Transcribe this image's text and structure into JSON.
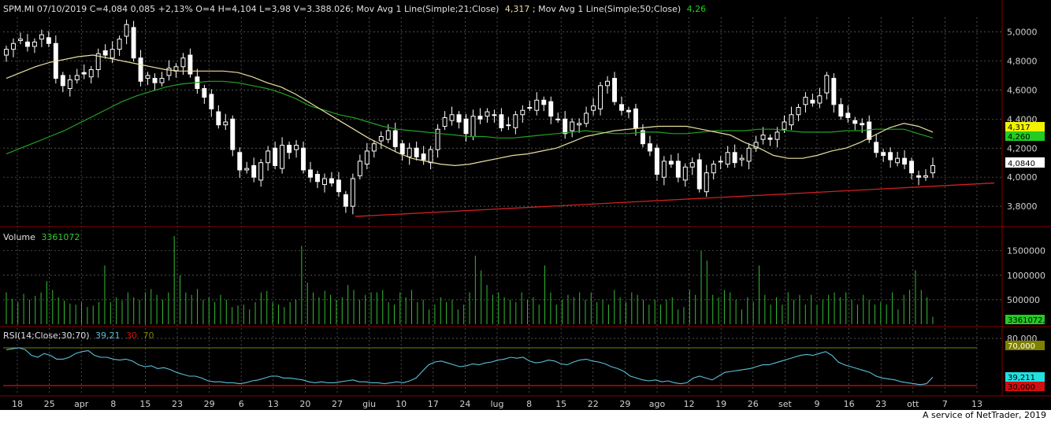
{
  "colors": {
    "background": "#000000",
    "grid": "#6a6a6a",
    "axis_text": "#d0d0d0",
    "up_candle": "#ffffff",
    "down_candle": "#ffffff",
    "ma21": "#e8e0a0",
    "ma50": "#22a022",
    "trendline": "#d02020",
    "volume": "#33bb33",
    "rsi": "#5ac0d8",
    "rsi_upper": "#808000",
    "rsi_lower": "#d01010",
    "price_tag": "#ffffff",
    "ma21_tag": "#f2f200",
    "ma50_tag": "#22cc22",
    "rsi_tag": "#22e0e0",
    "volume_tag": "#22cc22"
  },
  "header": {
    "text": "SPM.MI 07/10/2019 C=4,084 0,085 +2,13% O=4 H=4,104 L=3,98 V=3.388.026; Mov Avg 1 Line(Simple;21;Close)",
    "ma21_value": "4,317",
    "mid_text": "; Mov Avg 1 Line(Simple;50;Close)",
    "ma50_value": "4,26"
  },
  "volume_panel": {
    "label": "Volume",
    "value": "3361072"
  },
  "rsi_panel": {
    "label": "RSI(14;Close;30;70)",
    "value": "39,21",
    "level_low": "30",
    "level_high": "70"
  },
  "tags": {
    "ma21": "4,317",
    "ma50": "4,260",
    "price": "4,0840",
    "volume": "3361072,",
    "rsi_upper": "70,000",
    "rsi_value": "39,211",
    "rsi_lower": "30,000"
  },
  "footer": "A service of NetTrader, 2019",
  "chart_data": [
    {
      "type": "candlestick",
      "title": "SPM.MI",
      "y_ticks": [
        "5,0000",
        "4,8000",
        "4,6000",
        "4,4000",
        "4,2000",
        "4,0000",
        "3,8000"
      ],
      "ylim": [
        3.66,
        5.1
      ],
      "x_tick_labels": [
        "18",
        "25",
        "apr",
        "8",
        "15",
        "23",
        "29",
        "6",
        "13",
        "20",
        "27",
        "giu",
        "10",
        "17",
        "24",
        "lug",
        "8",
        "15",
        "22",
        "29",
        "ago",
        "12",
        "19",
        "26",
        "set",
        "9",
        "16",
        "23",
        "ott",
        "7",
        "13"
      ],
      "series": [
        {
          "name": "close",
          "values": [
            4.88,
            4.92,
            4.95,
            4.9,
            4.93,
            4.98,
            4.92,
            4.68,
            4.63,
            4.67,
            4.7,
            4.71,
            4.74,
            4.85,
            4.84,
            4.88,
            4.95,
            5.05,
            4.82,
            4.66,
            4.7,
            4.65,
            4.68,
            4.75,
            4.76,
            4.82,
            4.71,
            4.61,
            4.55,
            4.47,
            4.36,
            4.38,
            4.19,
            4.05,
            4.06,
            4.0,
            4.1,
            4.18,
            4.08,
            4.22,
            4.17,
            4.22,
            4.05,
            4.0,
            3.97,
            3.99,
            3.96,
            3.9,
            3.8,
            3.99,
            4.11,
            4.18,
            4.23,
            4.28,
            4.32,
            4.21,
            4.16,
            4.2,
            4.14,
            4.12,
            4.19,
            4.33,
            4.41,
            4.43,
            4.38,
            4.3,
            4.42,
            4.4,
            4.45,
            4.43,
            4.34,
            4.36,
            4.43,
            4.46,
            4.48,
            4.53,
            4.5,
            4.42,
            4.4,
            4.3,
            4.38,
            4.37,
            4.44,
            4.49,
            4.63,
            4.66,
            4.52,
            4.46,
            4.45,
            4.34,
            4.23,
            4.18,
            4.02,
            4.11,
            4.09,
            4.0,
            4.07,
            4.1,
            3.92,
            4.03,
            4.09,
            4.11,
            4.17,
            4.1,
            4.13,
            4.2,
            4.24,
            4.29,
            4.26,
            4.31,
            4.38,
            4.43,
            4.48,
            4.55,
            4.51,
            4.56,
            4.7,
            4.5,
            4.42,
            4.41,
            4.37,
            4.36,
            4.26,
            4.17,
            4.15,
            4.12,
            4.13,
            4.09,
            4.03,
            4.0,
            4.01,
            4.08
          ]
        },
        {
          "name": "Mov Avg 21",
          "values": [
            4.68,
            4.72,
            4.76,
            4.79,
            4.81,
            4.83,
            4.84,
            4.82,
            4.8,
            4.78,
            4.76,
            4.74,
            4.73,
            4.73,
            4.73,
            4.73,
            4.72,
            4.69,
            4.65,
            4.62,
            4.57,
            4.51,
            4.45,
            4.39,
            4.33,
            4.27,
            4.22,
            4.17,
            4.13,
            4.11,
            4.09,
            4.08,
            4.09,
            4.11,
            4.13,
            4.15,
            4.16,
            4.18,
            4.2,
            4.24,
            4.28,
            4.3,
            4.32,
            4.33,
            4.34,
            4.35,
            4.35,
            4.35,
            4.33,
            4.31,
            4.29,
            4.24,
            4.2,
            4.15,
            4.13,
            4.13,
            4.15,
            4.18,
            4.2,
            4.24,
            4.29,
            4.34,
            4.37,
            4.35,
            4.31
          ]
        },
        {
          "name": "Mov Avg 50",
          "values": [
            4.16,
            4.2,
            4.24,
            4.28,
            4.32,
            4.37,
            4.42,
            4.47,
            4.52,
            4.56,
            4.59,
            4.62,
            4.64,
            4.65,
            4.66,
            4.66,
            4.65,
            4.63,
            4.61,
            4.58,
            4.54,
            4.49,
            4.46,
            4.43,
            4.41,
            4.38,
            4.35,
            4.33,
            4.32,
            4.31,
            4.3,
            4.29,
            4.28,
            4.28,
            4.27,
            4.27,
            4.28,
            4.29,
            4.3,
            4.31,
            4.32,
            4.31,
            4.3,
            4.3,
            4.31,
            4.31,
            4.3,
            4.3,
            4.31,
            4.32,
            4.32,
            4.32,
            4.33,
            4.33,
            4.32,
            4.31,
            4.31,
            4.31,
            4.32,
            4.32,
            4.33,
            4.33,
            4.33,
            4.3,
            4.27
          ]
        }
      ],
      "trendline": [
        3.73,
        3.96
      ],
      "last_values": {
        "close": 4.084,
        "ma21": 4.317,
        "ma50": 4.26
      }
    },
    {
      "type": "bar",
      "title": "Volume",
      "y_ticks": [
        "1500000",
        "1000000",
        "500000"
      ],
      "ylim": [
        0,
        1800000
      ],
      "values": [
        650000,
        520000,
        450000,
        620000,
        500000,
        580000,
        650000,
        880000,
        700000,
        550000,
        480000,
        420000,
        400000,
        450000,
        350000,
        380000,
        450000,
        1200000,
        450000,
        550000,
        480000,
        650000,
        550000,
        500000,
        650000,
        720000,
        600000,
        500000,
        650000,
        1800000,
        1000000,
        650000,
        600000,
        720000,
        500000,
        550000,
        450000,
        600000,
        500000,
        350000,
        380000,
        400000,
        300000,
        450000,
        650000,
        680000,
        450000,
        400000,
        350000,
        450000,
        500000,
        1600000,
        850000,
        650000,
        550000,
        680000,
        600000,
        500000,
        550000,
        800000,
        700000,
        500000,
        600000,
        650000,
        650000,
        700000,
        450000,
        400000,
        650000,
        550000,
        700000,
        450000,
        500000,
        300000,
        400000,
        550000,
        450000,
        500000,
        300000,
        400000,
        650000,
        1400000,
        1100000,
        800000,
        600000,
        650000,
        550000,
        500000,
        450000,
        650000,
        500000,
        550000,
        400000,
        1200000,
        650000,
        400000,
        500000,
        600000,
        550000,
        650000,
        500000,
        650000,
        450000,
        500000,
        400000,
        700000,
        550000,
        450000,
        650000,
        600000,
        500000,
        400000,
        500000,
        400000,
        500000,
        550000,
        300000,
        350000,
        700000,
        600000,
        1500000,
        1300000,
        600000,
        550000,
        700000,
        650000,
        500000,
        300000,
        550000,
        450000,
        1200000,
        600000,
        400000,
        550000,
        400000,
        650000,
        500000,
        600000,
        400000,
        600000,
        400000,
        500000,
        600000,
        650000,
        550000,
        650000,
        500000,
        400000,
        600000,
        500000,
        400000,
        450000,
        400000,
        650000,
        300000,
        600000,
        700000,
        1100000,
        700000,
        550000,
        150000
      ]
    },
    {
      "type": "line",
      "title": "RSI(14;Close;30;70)",
      "y_ticks": [
        "80,000"
      ],
      "ylim": [
        20,
        90
      ],
      "levels": [
        30,
        70
      ],
      "values": [
        68,
        69,
        70,
        68,
        62,
        60,
        64,
        62,
        58,
        58,
        60,
        64,
        66,
        67,
        62,
        60,
        60,
        58,
        57,
        58,
        56,
        52,
        50,
        51,
        48,
        49,
        47,
        44,
        42,
        40,
        40,
        38,
        35,
        34,
        34,
        33,
        33,
        32,
        33,
        35,
        36,
        38,
        40,
        40,
        38,
        38,
        37,
        36,
        34,
        33,
        34,
        33,
        33,
        34,
        35,
        36,
        34,
        34,
        33,
        33,
        32,
        33,
        34,
        33,
        35,
        38,
        45,
        52,
        55,
        56,
        54,
        52,
        50,
        51,
        53,
        52,
        54,
        55,
        57,
        58,
        60,
        59,
        60,
        56,
        54,
        55,
        57,
        56,
        53,
        52,
        55,
        57,
        58,
        56,
        55,
        53,
        50,
        48,
        45,
        40,
        38,
        36,
        35,
        36,
        34,
        35,
        33,
        32,
        33,
        38,
        40,
        38,
        36,
        40,
        44,
        45,
        46,
        47,
        48,
        50,
        52,
        52,
        54,
        56,
        58,
        60,
        62,
        63,
        62,
        64,
        66,
        62,
        55,
        52,
        50,
        48,
        46,
        44,
        40,
        38,
        37,
        36,
        34,
        33,
        32,
        31,
        32,
        39
      ]
    }
  ]
}
